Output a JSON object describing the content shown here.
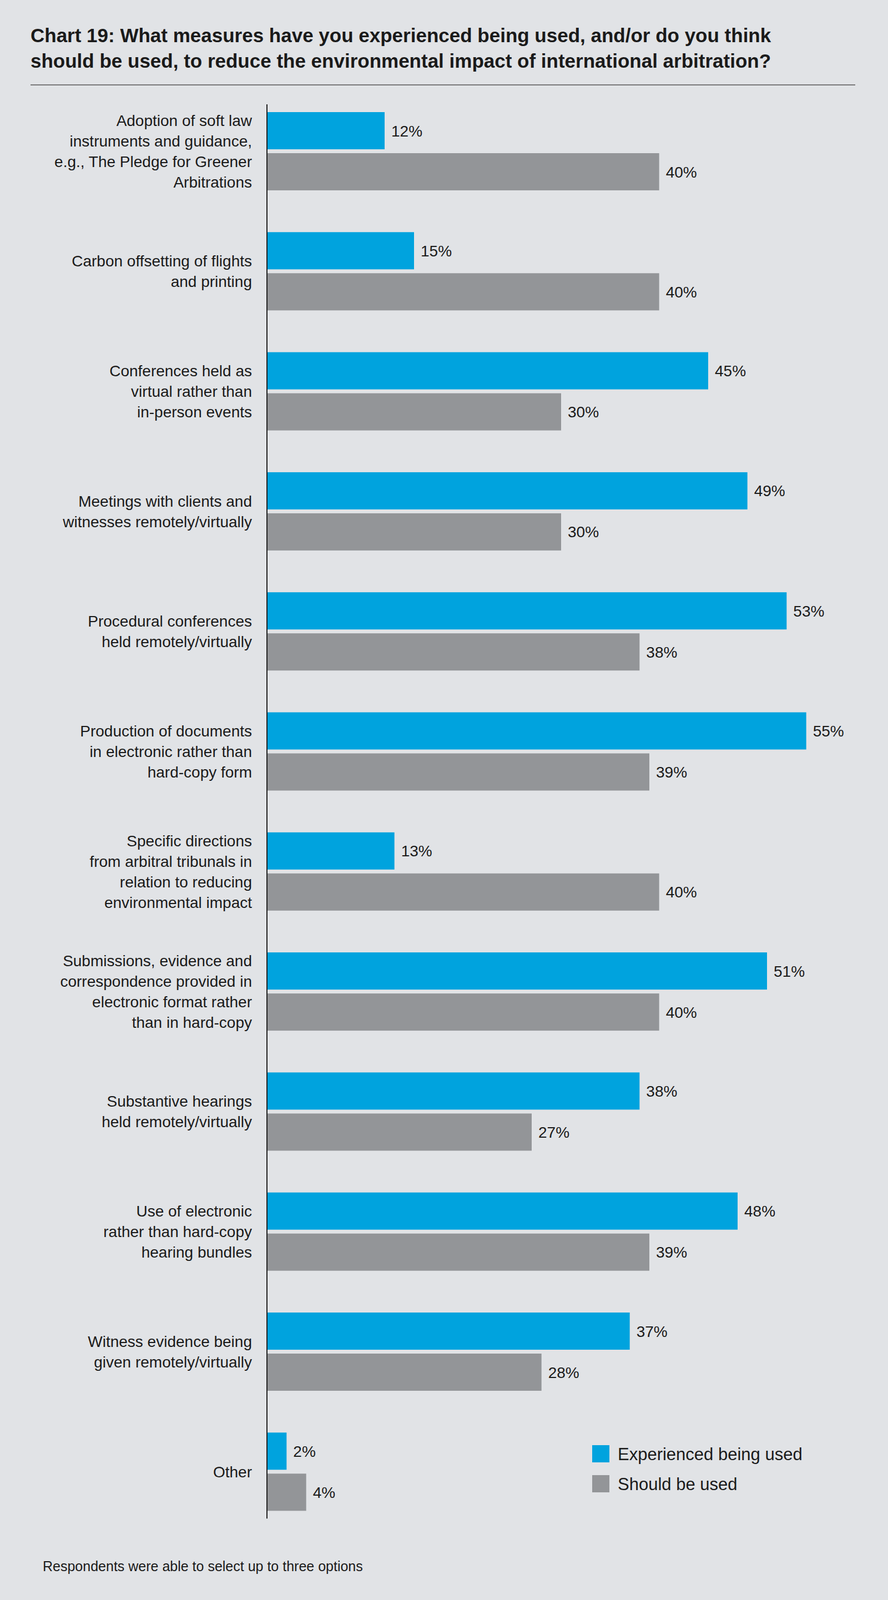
{
  "chart_data": {
    "type": "bar",
    "orientation": "horizontal",
    "title": "Chart 19: What measures have you experienced being used, and/or do you think\nshould be used, to reduce the environmental impact of international arbitration?",
    "note": "Respondents were able to select up to three options",
    "categories": [
      "Adoption of soft law\ninstruments and guidance,\ne.g., The Pledge for Greener\nArbitrations",
      "Carbon offsetting of flights\nand printing",
      "Conferences held as\nvirtual rather than\nin-person events",
      "Meetings with clients and\nwitnesses remotely/virtually",
      "Procedural conferences\nheld remotely/virtually",
      "Production of documents\nin electronic rather than\nhard-copy form",
      "Specific directions\nfrom arbitral tribunals in\nrelation to reducing\nenvironmental impact",
      "Submissions, evidence and\ncorrespondence provided in\nelectronic format rather\nthan in hard-copy",
      "Substantive hearings\nheld remotely/virtually",
      "Use of electronic\nrather than hard-copy\nhearing bundles",
      "Witness evidence being\ngiven remotely/virtually",
      "Other"
    ],
    "series": [
      {
        "name": "Experienced being used",
        "color": "#00a3de",
        "values": [
          12,
          15,
          45,
          49,
          53,
          55,
          13,
          51,
          38,
          48,
          37,
          2
        ],
        "value_labels": [
          "12%",
          "15%",
          "45%",
          "49%",
          "53%",
          "55%",
          "13%",
          "51%",
          "38%",
          "48%",
          "37%",
          "2%"
        ]
      },
      {
        "name": "Should be used",
        "color": "#939598",
        "values": [
          40,
          40,
          30,
          30,
          38,
          39,
          40,
          40,
          27,
          39,
          28,
          4
        ],
        "value_labels": [
          "40%",
          "40%",
          "30%",
          "30%",
          "38%",
          "39%",
          "40%",
          "40%",
          "27%",
          "39%",
          "28%",
          "4%"
        ]
      }
    ],
    "xlim": [
      0,
      60
    ],
    "data_labels": true,
    "tick_labels": false,
    "grid": false,
    "legend": "bottom-right"
  }
}
